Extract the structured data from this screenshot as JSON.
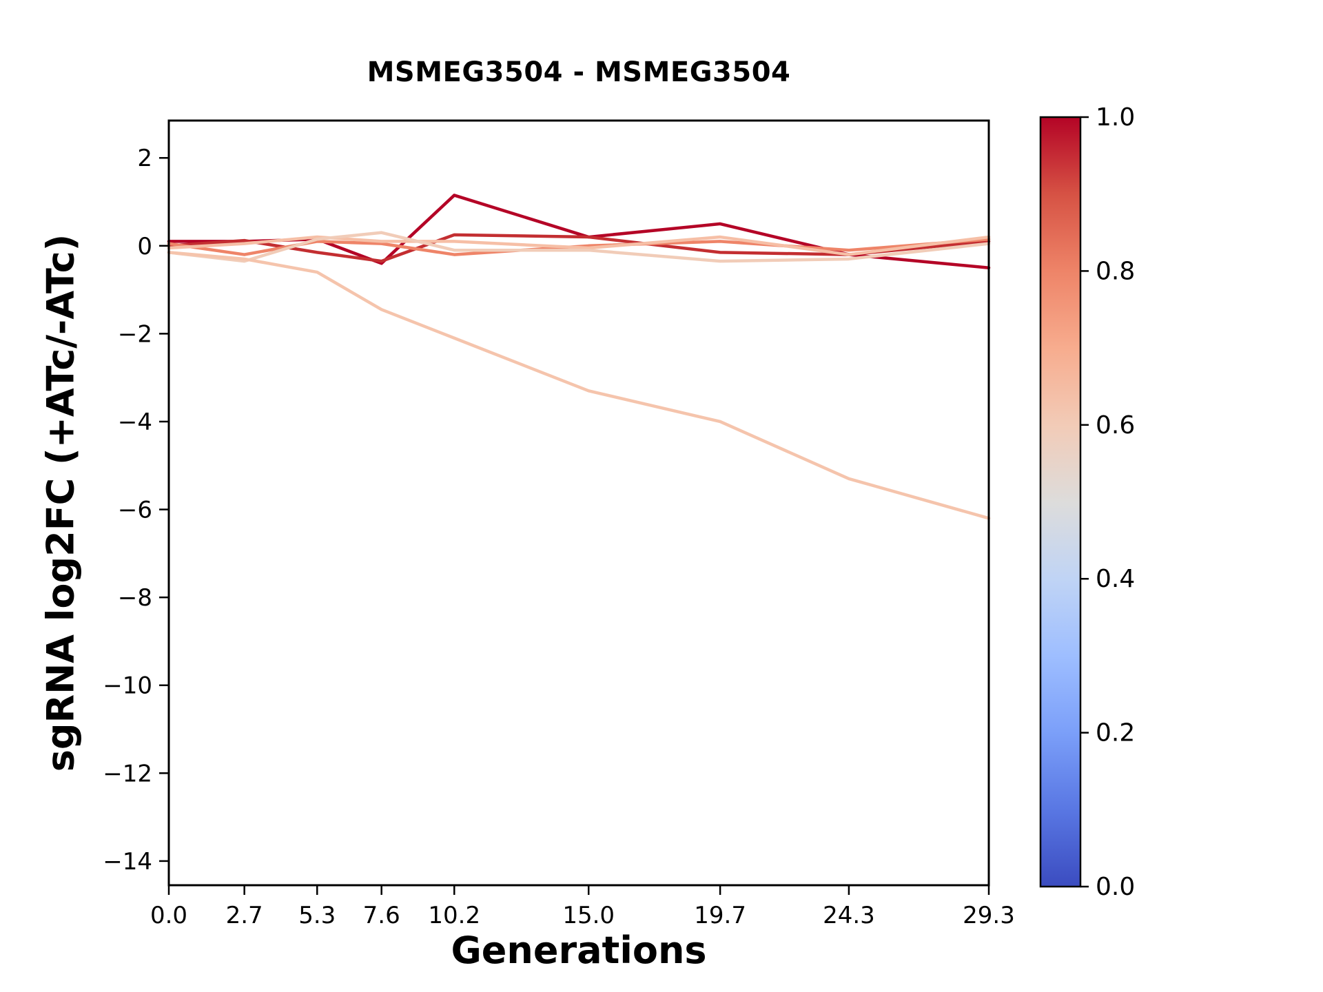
{
  "title": "MSMEG3504 - MSMEG3504",
  "xlabel": "Generations",
  "ylabel": "sgRNA log2FC (+ATc/-ATc)",
  "chart_data": {
    "type": "line",
    "title": "MSMEG3504 - MSMEG3504",
    "xlabel": "Generations",
    "ylabel": "sgRNA log2FC (+ATc/-ATc)",
    "x": [
      0.0,
      2.7,
      5.3,
      7.6,
      10.2,
      15.0,
      19.7,
      24.3,
      29.3
    ],
    "x_tick_labels": [
      "0.0",
      "2.7",
      "5.3",
      "7.6",
      "10.2",
      "15.0",
      "19.7",
      "24.3",
      "29.3"
    ],
    "y_ticks": [
      2,
      0,
      -2,
      -4,
      -6,
      -8,
      -10,
      -12,
      -14
    ],
    "y_tick_labels": [
      "2",
      "0",
      "−2",
      "−4",
      "−6",
      "−8",
      "−10",
      "−12",
      "−14"
    ],
    "xlim": [
      0,
      29.3
    ],
    "ylim": [
      -14.55,
      2.85
    ],
    "grid": false,
    "legend": "none (colorbar encodes colormap value)",
    "series": [
      {
        "name": "line-1",
        "colormap_value": 1.0,
        "color": "#b40426",
        "values": [
          0.1,
          0.1,
          0.15,
          -0.4,
          1.15,
          0.2,
          0.5,
          -0.2,
          -0.5
        ]
      },
      {
        "name": "line-2",
        "colormap_value": 0.93,
        "color": "#c32e31",
        "values": [
          0.0,
          0.12,
          -0.15,
          -0.35,
          0.25,
          0.2,
          -0.15,
          -0.2,
          0.1
        ]
      },
      {
        "name": "line-3",
        "colormap_value": 0.8,
        "color": "#ee8468",
        "values": [
          0.05,
          -0.2,
          0.1,
          0.05,
          -0.2,
          0.0,
          0.1,
          -0.1,
          0.15
        ]
      },
      {
        "name": "line-4",
        "colormap_value": 0.63,
        "color": "#f6bfa6",
        "values": [
          -0.05,
          0.05,
          0.2,
          0.1,
          0.1,
          -0.05,
          0.2,
          -0.2,
          0.2
        ]
      },
      {
        "name": "line-5",
        "colormap_value": 0.57,
        "color": "#f1ccb8",
        "values": [
          -0.15,
          -0.35,
          0.15,
          0.3,
          -0.1,
          -0.1,
          -0.35,
          -0.3,
          0.05
        ]
      },
      {
        "name": "line-6",
        "colormap_value": 0.6,
        "color": "#f5c4ac",
        "values": [
          -0.15,
          -0.3,
          -0.6,
          -1.45,
          -2.1,
          -3.3,
          -4.0,
          -5.3,
          -6.2
        ]
      }
    ],
    "colorbar": {
      "min": 0.0,
      "max": 1.0,
      "tick_values": [
        1.0,
        0.8,
        0.6,
        0.4,
        0.2,
        0.0
      ],
      "tick_labels": [
        "1.0",
        "0.8",
        "0.6",
        "0.4",
        "0.2",
        "0.0"
      ],
      "gradient_stops": [
        {
          "offset": 0.0,
          "color": "#3b4cc0"
        },
        {
          "offset": 0.1,
          "color": "#5977e3"
        },
        {
          "offset": 0.2,
          "color": "#7b9ff9"
        },
        {
          "offset": 0.3,
          "color": "#9ebeff"
        },
        {
          "offset": 0.4,
          "color": "#c0d4f5"
        },
        {
          "offset": 0.5,
          "color": "#dddcdb"
        },
        {
          "offset": 0.6,
          "color": "#f2cbb7"
        },
        {
          "offset": 0.7,
          "color": "#f7ac8e"
        },
        {
          "offset": 0.8,
          "color": "#ee8468"
        },
        {
          "offset": 0.9,
          "color": "#d65244"
        },
        {
          "offset": 1.0,
          "color": "#b40426"
        }
      ]
    }
  }
}
